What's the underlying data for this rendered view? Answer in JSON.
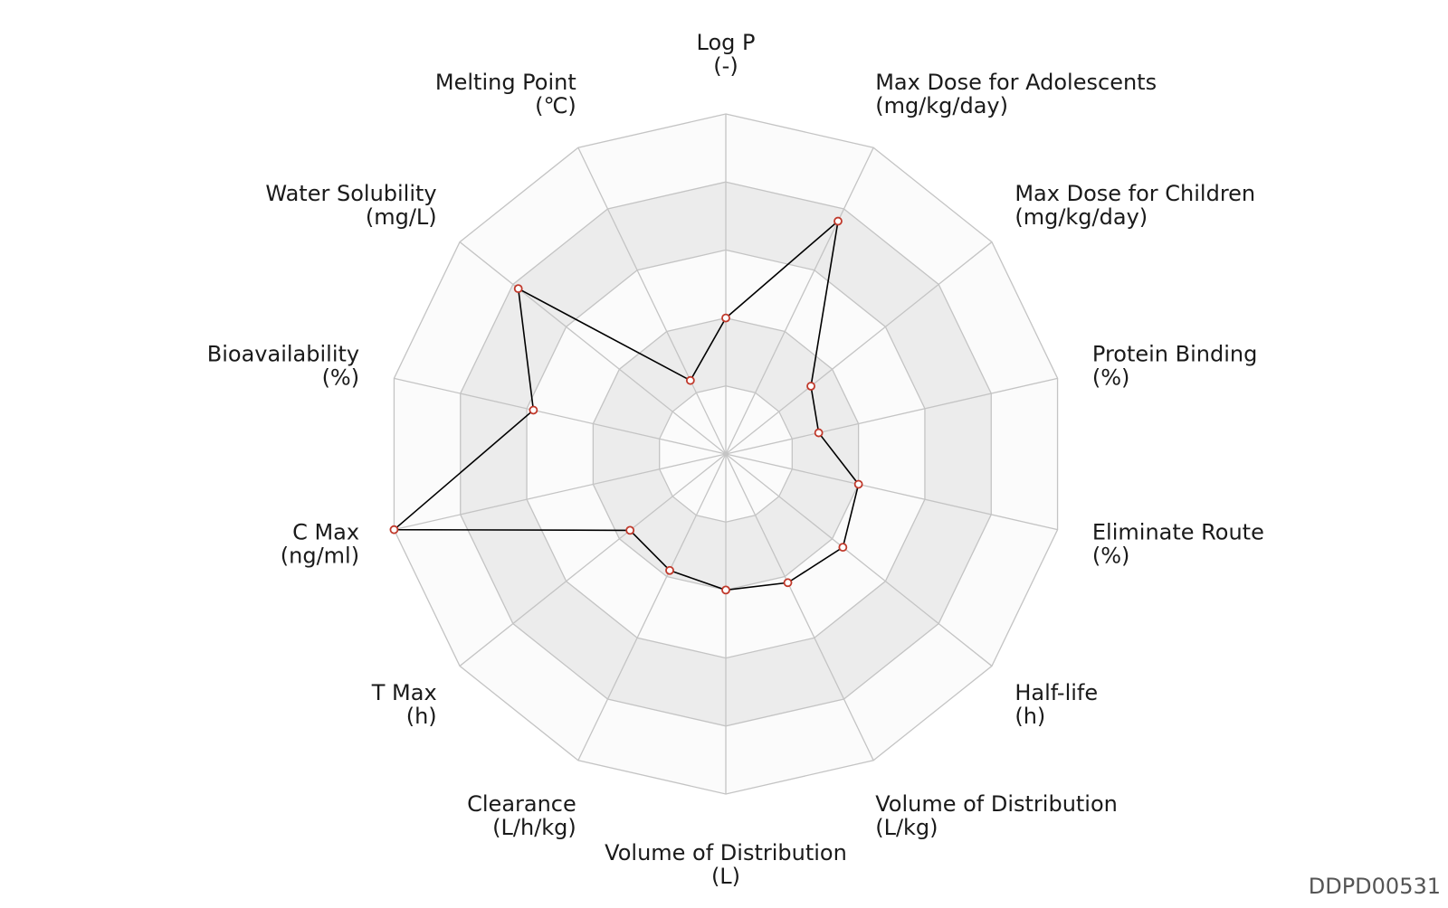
{
  "chart_data": {
    "type": "radar",
    "levels": 5,
    "range": [
      0,
      5
    ],
    "grid": true,
    "colors": {
      "band_light": "#fbfbfb",
      "band_dark": "#ececec",
      "grid_line": "#c4c4c4",
      "series_line": "#000000",
      "marker_stroke": "#c0392b",
      "marker_fill": "#ffffff"
    },
    "axes": [
      {
        "name": "Log P",
        "unit": "(-)"
      },
      {
        "name": "Max Dose for Adolescents",
        "unit": "(mg/kg/day)"
      },
      {
        "name": "Max Dose for Children",
        "unit": "(mg/kg/day)"
      },
      {
        "name": "Protein Binding",
        "unit": "(%)"
      },
      {
        "name": "Eliminate Route",
        "unit": "(%)"
      },
      {
        "name": "Half-life",
        "unit": "(h)"
      },
      {
        "name": "Volume of Distribution",
        "unit": "(L/kg)"
      },
      {
        "name": "Volume of Distribution",
        "unit": "(L)"
      },
      {
        "name": "Clearance",
        "unit": "(L/h/kg)"
      },
      {
        "name": "T Max",
        "unit": "(h)"
      },
      {
        "name": "C Max",
        "unit": "(ng/ml)"
      },
      {
        "name": "Bioavailability",
        "unit": "(%)"
      },
      {
        "name": "Water Solubility",
        "unit": "(mg/L)"
      },
      {
        "name": "Melting Point",
        "unit": "(℃)"
      }
    ],
    "series": [
      {
        "values": [
          2.0,
          3.8,
          1.6,
          1.4,
          2.0,
          2.2,
          2.1,
          2.0,
          1.9,
          1.8,
          5.0,
          2.9,
          3.9,
          1.2
        ]
      }
    ]
  },
  "footer": {
    "id_text": "DDPD00531"
  }
}
